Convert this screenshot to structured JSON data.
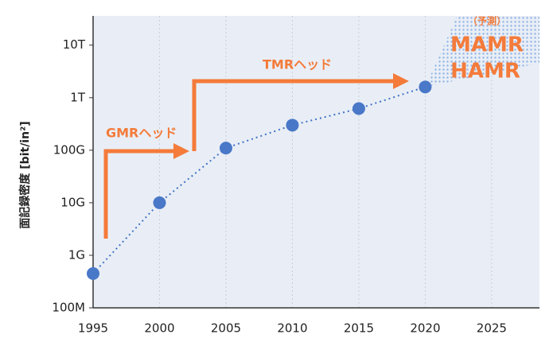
{
  "chart_data": {
    "type": "line",
    "log_y": true,
    "grid": true,
    "y_label": "面記録密度 [bit/in²]",
    "x": [
      1995,
      2000,
      2005,
      2010,
      2015,
      2020
    ],
    "series": [
      {
        "color": "#3f72c4",
        "values": [
          450000000,
          10000000000,
          110000000000,
          300000000000,
          620000000000,
          1600000000000
        ]
      }
    ],
    "xlim": [
      1995,
      2028.6
    ],
    "xticks": [
      1995,
      2000,
      2005,
      2010,
      2015,
      2020,
      2025
    ],
    "ylim": [
      100000000,
      36000000000000
    ],
    "yticks": [
      {
        "value": 100000000,
        "label": "100M"
      },
      {
        "value": 1000000000,
        "label": "1G"
      },
      {
        "value": 10000000000,
        "label": "10G"
      },
      {
        "value": 100000000000,
        "label": "100G"
      },
      {
        "value": 1000000000000,
        "label": "1T"
      },
      {
        "value": 10000000000000,
        "label": "10T"
      }
    ],
    "forecast_from": 2020,
    "annotations": {
      "gmr": "GMRヘッド",
      "tmr": "TMRヘッド",
      "mamr": "MAMR",
      "hamr": "HAMR",
      "forecast": "（予測）"
    },
    "annotation_color": "#f47b3a"
  }
}
